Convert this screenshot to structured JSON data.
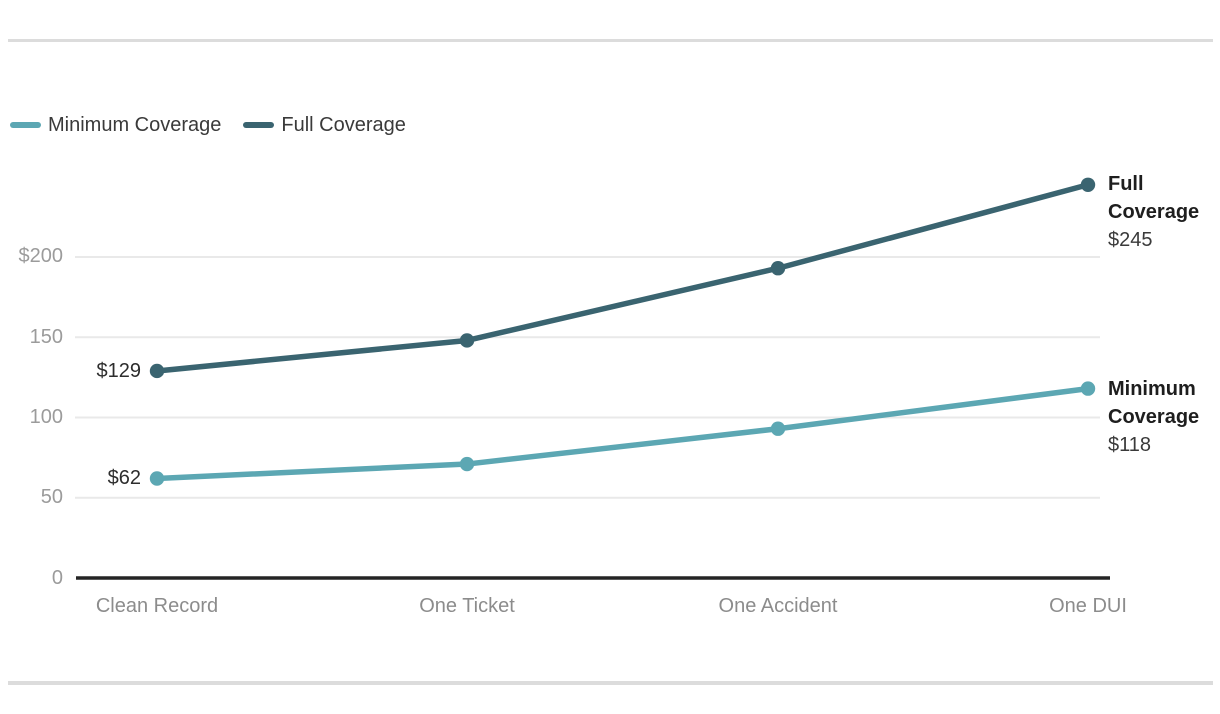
{
  "chart_data": {
    "type": "line",
    "categories": [
      "Clean Record",
      "One Ticket",
      "One Accident",
      "One DUI"
    ],
    "series": [
      {
        "name": "Minimum Coverage",
        "values": [
          62,
          71,
          93,
          118
        ],
        "color": "#5CA7B3",
        "start_label": "$62",
        "end_title": "Minimum Coverage",
        "end_value": "$118"
      },
      {
        "name": "Full Coverage",
        "values": [
          129,
          148,
          193,
          245
        ],
        "color": "#3A6470",
        "start_label": "$129",
        "end_title": "Full Coverage",
        "end_value": "$245"
      }
    ],
    "y_ticks": [
      {
        "label": "$200",
        "value": 200
      },
      {
        "label": "150",
        "value": 150
      },
      {
        "label": "100",
        "value": 100
      },
      {
        "label": "50",
        "value": 50
      },
      {
        "label": "0",
        "value": 0
      }
    ],
    "ylim": [
      0,
      260
    ],
    "grid": true,
    "legend_position": "top-left",
    "axis_color": "#242424",
    "gridline_color": "#e9e9e9",
    "title": "",
    "xlabel": "",
    "ylabel": ""
  }
}
